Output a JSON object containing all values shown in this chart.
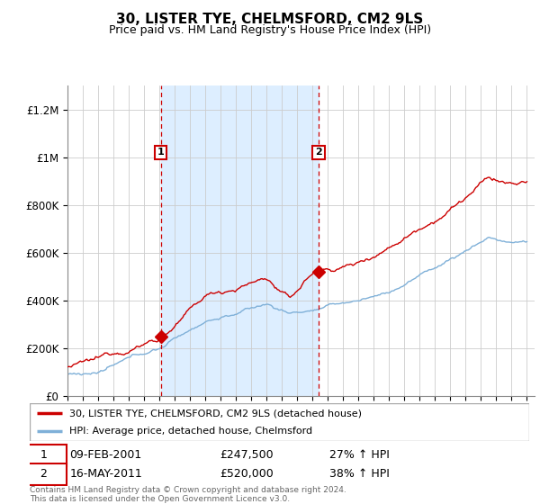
{
  "title": "30, LISTER TYE, CHELMSFORD, CM2 9LS",
  "subtitle": "Price paid vs. HM Land Registry's House Price Index (HPI)",
  "title_fontsize": 11,
  "subtitle_fontsize": 9,
  "background_color": "#ffffff",
  "plot_bg_color": "#ffffff",
  "shaded_region_color": "#ddeeff",
  "grid_color": "#cccccc",
  "red_line_color": "#cc0000",
  "blue_line_color": "#7fb0d8",
  "dashed_line_color": "#cc0000",
  "ylim": [
    0,
    1300000
  ],
  "yticks": [
    0,
    200000,
    400000,
    600000,
    800000,
    1000000,
    1200000
  ],
  "ytick_labels": [
    "£0",
    "£200K",
    "£400K",
    "£600K",
    "£800K",
    "£1M",
    "£1.2M"
  ],
  "xstart_year": 1995,
  "xend_year": 2025,
  "marker1_year": 2001.1,
  "marker1_value": 247500,
  "marker1_label": "1",
  "marker1_date": "09-FEB-2001",
  "marker1_price": "£247,500",
  "marker1_hpi": "27% ↑ HPI",
  "marker2_year": 2011.4,
  "marker2_value": 520000,
  "marker2_label": "2",
  "marker2_date": "16-MAY-2011",
  "marker2_price": "£520,000",
  "marker2_hpi": "38% ↑ HPI",
  "legend_line1": "30, LISTER TYE, CHELMSFORD, CM2 9LS (detached house)",
  "legend_line2": "HPI: Average price, detached house, Chelmsford",
  "footer": "Contains HM Land Registry data © Crown copyright and database right 2024.\nThis data is licensed under the Open Government Licence v3.0."
}
